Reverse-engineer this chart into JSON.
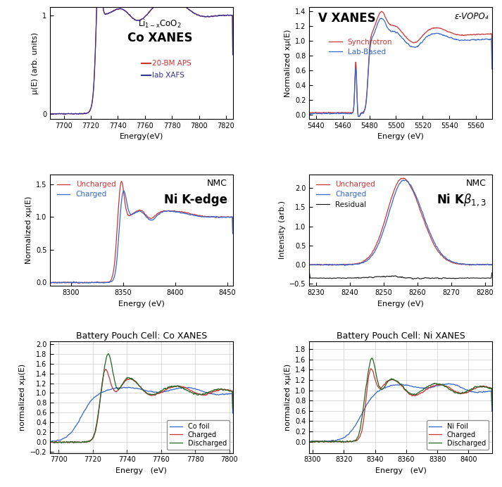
{
  "fig_width": 7.13,
  "fig_height": 6.92,
  "panels": [
    {
      "id": "co_xanes",
      "xlabel": "Energy(eV)",
      "ylabel": "μ(E) (arb. units)",
      "xlim": [
        7690,
        7825
      ],
      "ylim": [
        -0.05,
        1.08
      ],
      "yticks": [
        0,
        1
      ],
      "xticks": [
        7700,
        7720,
        7740,
        7760,
        7780,
        7800,
        7820
      ],
      "legend": [
        {
          "label": "20-BM APS",
          "color": "#cc3333"
        },
        {
          "label": "lab XAFS",
          "color": "#333399"
        }
      ]
    },
    {
      "id": "v_xanes",
      "title": "V XANES",
      "annotation": "ε-VOPO₄",
      "xlabel": "Energy (eV)",
      "ylabel": "Normalized xμ(E)",
      "xlim": [
        5435,
        5572
      ],
      "ylim": [
        -0.05,
        1.45
      ],
      "yticks": [
        0.0,
        0.2,
        0.4,
        0.6,
        0.8,
        1.0,
        1.2,
        1.4
      ],
      "xticks": [
        5440,
        5460,
        5480,
        5500,
        5520,
        5540,
        5560
      ],
      "legend": [
        {
          "label": "Synchrotron",
          "color": "#cc3333"
        },
        {
          "label": "Lab-Based",
          "color": "#3366cc"
        }
      ]
    },
    {
      "id": "ni_kedge",
      "xlabel": "Energy (eV)",
      "ylabel": "Normalized xμ(E)",
      "xlim": [
        8280,
        8455
      ],
      "ylim": [
        -0.05,
        1.65
      ],
      "yticks": [
        0.0,
        0.5,
        1.0,
        1.5
      ],
      "xticks": [
        8300,
        8350,
        8400,
        8450
      ],
      "legend": [
        {
          "label": "Uncharged",
          "color": "#cc3333"
        },
        {
          "label": "Charged",
          "color": "#3366cc"
        }
      ]
    },
    {
      "id": "ni_kbeta",
      "xlabel": "Energy (eV)",
      "ylabel": "Intensity (arb.)",
      "xlim": [
        8228,
        8282
      ],
      "ylim": [
        -0.55,
        2.35
      ],
      "yticks": [
        -0.5,
        0.0,
        0.5,
        1.0,
        1.5,
        2.0
      ],
      "xticks": [
        8230,
        8240,
        8250,
        8260,
        8270,
        8280
      ],
      "legend": [
        {
          "label": "Uncharged",
          "color": "#cc3333"
        },
        {
          "label": "Charged",
          "color": "#3366cc"
        },
        {
          "label": "Residual",
          "color": "#111111"
        }
      ]
    },
    {
      "id": "co_xanes_battery",
      "title": "Battery Pouch Cell: Co XANES",
      "xlabel": "Energy   (eV)",
      "ylabel": "normalized xμ(E)",
      "xlim": [
        7695,
        7802
      ],
      "ylim": [
        -0.22,
        2.05
      ],
      "yticks": [
        -0.2,
        0.0,
        0.2,
        0.4,
        0.6,
        0.8,
        1.0,
        1.2,
        1.4,
        1.6,
        1.8,
        2.0
      ],
      "xticks": [
        7700,
        7720,
        7740,
        7760,
        7780,
        7800
      ],
      "legend": [
        {
          "label": "Co foil",
          "color": "#3366cc"
        },
        {
          "label": "Charged",
          "color": "#cc3333"
        },
        {
          "label": "Discharged",
          "color": "#226622"
        }
      ]
    },
    {
      "id": "ni_xanes_battery",
      "title": "Battery Pouch Cell: Ni XANES",
      "xlabel": "Energy   (eV)",
      "ylabel": "normalized xμ(E)",
      "xlim": [
        8298,
        8415
      ],
      "ylim": [
        -0.22,
        1.95
      ],
      "yticks": [
        0.0,
        0.2,
        0.4,
        0.6,
        0.8,
        1.0,
        1.2,
        1.4,
        1.6,
        1.8
      ],
      "xticks": [
        8300,
        8320,
        8340,
        8360,
        8380,
        8400
      ],
      "legend": [
        {
          "label": "Ni Foil",
          "color": "#3366cc"
        },
        {
          "label": "Charged",
          "color": "#cc3333"
        },
        {
          "label": "Discharged",
          "color": "#226622"
        }
      ]
    }
  ]
}
